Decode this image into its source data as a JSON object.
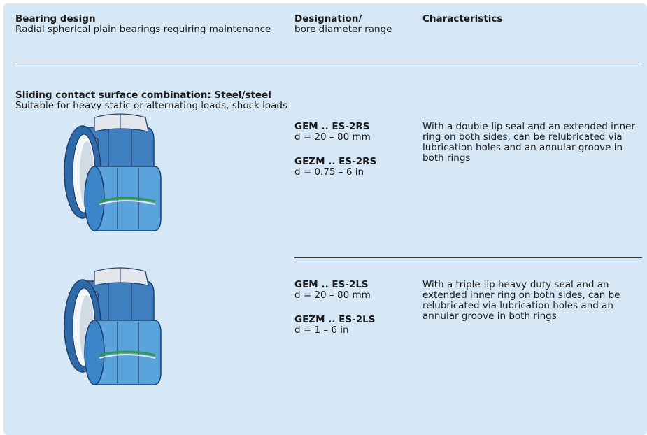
{
  "header": {
    "columns": [
      {
        "title": "Bearing design",
        "subtitle": "Radial spherical plain bearings requiring maintenance"
      },
      {
        "title": "Designation/",
        "subtitle": "bore diameter range"
      },
      {
        "title": "Characteristics"
      }
    ]
  },
  "section": {
    "title": "Sliding contact surface combination: Steel/steel",
    "subtitle": "Suitable for heavy static or alternating loads, shock loads"
  },
  "rows": [
    {
      "designations": [
        {
          "code": "GEM .. ES-2RS",
          "range": "d = 20 – 80 mm"
        },
        {
          "code": "GEZM .. ES-2RS",
          "range": "d = 0.75 – 6 in"
        }
      ],
      "characteristics": [
        "With a double-lip seal and an extended inner",
        "ring on both sides, can be relubricated via",
        "lubrication holes and an annular groove in",
        "both rings"
      ]
    },
    {
      "designations": [
        {
          "code": "GEM .. ES-2LS",
          "range": "d = 20 – 80 mm"
        },
        {
          "code": "GEZM .. ES-2LS",
          "range": "d = 1 – 6 in"
        }
      ],
      "characteristics": [
        "With a triple-lip heavy-duty seal and an",
        "extended inner ring on both sides, can be",
        "relubricated via lubrication holes and an",
        "annular groove in both rings"
      ]
    }
  ]
}
